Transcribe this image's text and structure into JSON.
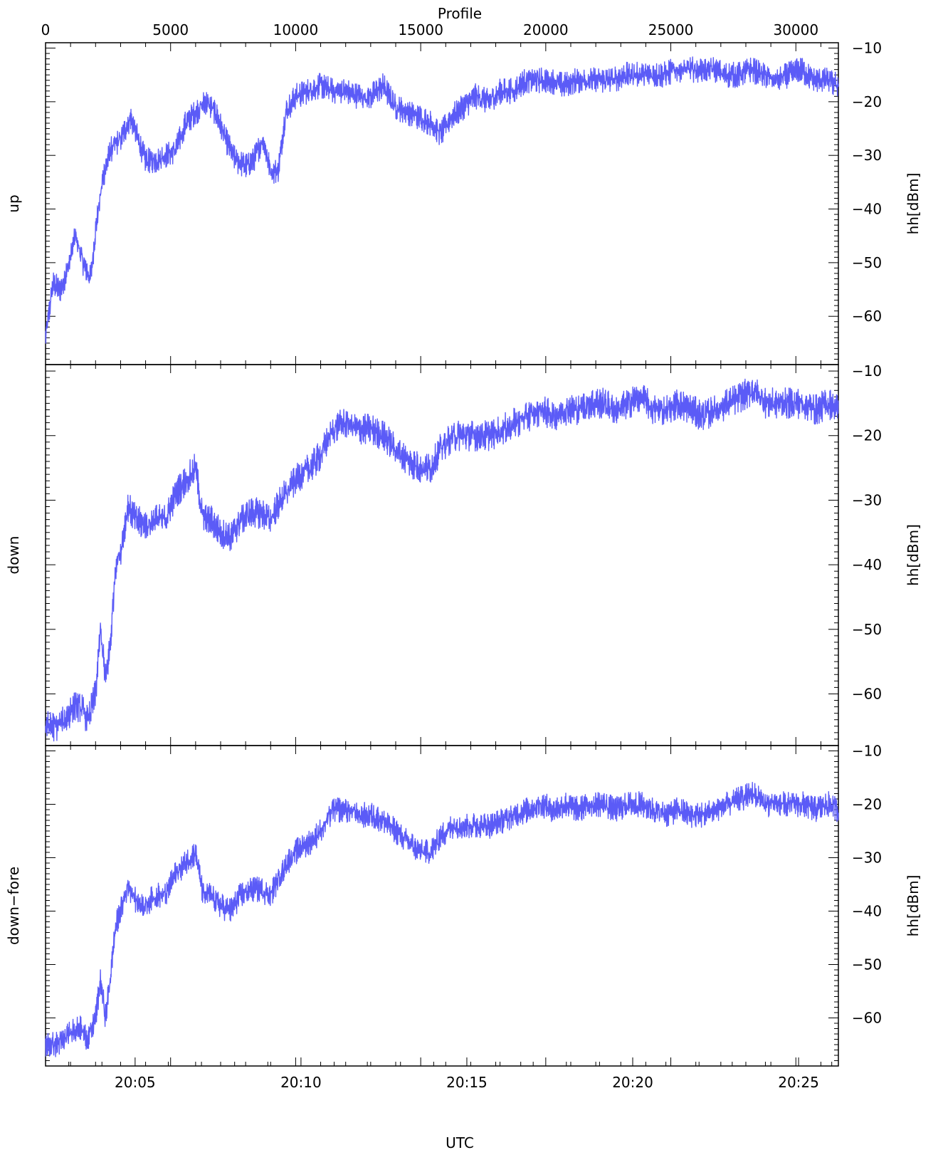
{
  "figure": {
    "top_axis_label": "Profile",
    "bottom_axis_label": "UTC",
    "line_color": "#5b5bf7",
    "axis_color": "#000000"
  },
  "chart_data": [
    {
      "type": "line",
      "panel": "up",
      "left_label": "up",
      "right_label": "hh[dBm]",
      "x_range_profile": [
        0,
        31700
      ],
      "x_range_utc_min": [
        1202.3,
        1226.2
      ],
      "ylim": [
        -69,
        -9
      ],
      "yticks": [
        -10,
        -20,
        -30,
        -40,
        -50,
        -60
      ],
      "top_ticks": [
        0,
        5000,
        10000,
        15000,
        20000,
        25000,
        30000
      ],
      "x": [
        0,
        300,
        600,
        900,
        1200,
        1500,
        1800,
        2000,
        2300,
        2600,
        3000,
        3400,
        3700,
        4000,
        4400,
        4800,
        5200,
        5600,
        6000,
        6400,
        6800,
        7200,
        7600,
        8000,
        8300,
        8700,
        9000,
        9300,
        9600,
        10000,
        10500,
        11000,
        11500,
        12000,
        12500,
        13000,
        13500,
        14000,
        14500,
        15000,
        15400,
        15800,
        16200,
        16700,
        17200,
        17700,
        18200,
        18700,
        19200,
        19700,
        20200,
        20700,
        21200,
        21700,
        22200,
        22700,
        23200,
        23700,
        24200,
        24700,
        25200,
        25700,
        26200,
        26700,
        27200,
        27700,
        28200,
        28700,
        29200,
        29700,
        30200,
        30700,
        31200,
        31700
      ],
      "y": [
        -64,
        -54,
        -55,
        -51,
        -45,
        -50,
        -53,
        -44,
        -34,
        -29,
        -27,
        -23,
        -27,
        -31,
        -31,
        -30,
        -29,
        -24,
        -22,
        -20,
        -22,
        -27,
        -31,
        -32,
        -31,
        -27,
        -33,
        -33,
        -22,
        -19,
        -18,
        -17,
        -18,
        -18,
        -19,
        -19,
        -17,
        -21,
        -22,
        -23,
        -24,
        -26,
        -23,
        -21,
        -19,
        -20,
        -18,
        -18,
        -16,
        -16,
        -16,
        -17,
        -16,
        -16,
        -16,
        -16,
        -15,
        -15,
        -15,
        -15,
        -14,
        -14,
        -14,
        -14,
        -15,
        -15,
        -14,
        -15,
        -16,
        -15,
        -14,
        -16,
        -16,
        -17
      ]
    },
    {
      "type": "line",
      "panel": "down",
      "left_label": "down",
      "right_label": "hh[dBm]",
      "x_range_profile": [
        0,
        31700
      ],
      "ylim": [
        -68,
        -9
      ],
      "yticks": [
        -10,
        -20,
        -30,
        -40,
        -50,
        -60
      ],
      "x": [
        0,
        400,
        800,
        1100,
        1400,
        1700,
        2000,
        2200,
        2400,
        2600,
        2800,
        3000,
        3300,
        3600,
        4000,
        4400,
        4800,
        5200,
        5600,
        6000,
        6300,
        6600,
        7000,
        7400,
        7800,
        8200,
        8600,
        9000,
        9400,
        9800,
        10200,
        10600,
        11000,
        11500,
        12000,
        12500,
        13000,
        13500,
        14000,
        14500,
        15000,
        15400,
        15800,
        16300,
        16800,
        17300,
        17800,
        18300,
        18800,
        19300,
        19800,
        20300,
        20800,
        21300,
        21800,
        22300,
        22800,
        23300,
        23800,
        24300,
        24800,
        25300,
        25800,
        26300,
        26800,
        27300,
        27800,
        28300,
        28800,
        29300,
        29800,
        30300,
        30800,
        31300,
        31700
      ],
      "y": [
        -65,
        -65,
        -64,
        -62,
        -62,
        -64,
        -60,
        -50,
        -58,
        -52,
        -40,
        -38,
        -31,
        -33,
        -34,
        -33,
        -33,
        -29,
        -27,
        -25,
        -33,
        -33,
        -35,
        -36,
        -33,
        -32,
        -32,
        -33,
        -30,
        -28,
        -26,
        -25,
        -23,
        -19,
        -18,
        -19,
        -19,
        -20,
        -22,
        -24,
        -25,
        -25,
        -22,
        -20,
        -20,
        -20,
        -20,
        -19,
        -18,
        -17,
        -16,
        -17,
        -16,
        -16,
        -15,
        -15,
        -16,
        -15,
        -14,
        -16,
        -16,
        -15,
        -16,
        -17,
        -16,
        -15,
        -14,
        -13,
        -15,
        -15,
        -15,
        -15,
        -16,
        -15,
        -16
      ]
    },
    {
      "type": "line",
      "panel": "down-fore",
      "left_label": "down−fore",
      "right_label": "hh[dBm]",
      "x_range_profile": [
        0,
        31700
      ],
      "ylim": [
        -69,
        -9
      ],
      "yticks": [
        -10,
        -20,
        -30,
        -40,
        -50,
        -60
      ],
      "bottom_ticks": [
        "20:05",
        "20:10",
        "20:15",
        "20:20",
        "20:25"
      ],
      "x": [
        0,
        400,
        800,
        1100,
        1400,
        1700,
        2000,
        2200,
        2400,
        2600,
        2800,
        3000,
        3300,
        3600,
        4000,
        4400,
        4800,
        5200,
        5600,
        6000,
        6300,
        6600,
        7000,
        7400,
        7800,
        8200,
        8600,
        9000,
        9400,
        9800,
        10200,
        10600,
        11000,
        11500,
        12000,
        12500,
        13000,
        13500,
        14000,
        14500,
        15000,
        15400,
        15800,
        16300,
        16800,
        17300,
        17800,
        18300,
        18800,
        19300,
        19800,
        20300,
        20800,
        21300,
        21800,
        22300,
        22800,
        23300,
        23800,
        24300,
        24800,
        25300,
        25800,
        26300,
        26800,
        27300,
        27800,
        28300,
        28800,
        29300,
        29800,
        30300,
        30800,
        31300,
        31700
      ],
      "y": [
        -65,
        -65,
        -64,
        -62,
        -62,
        -64,
        -60,
        -53,
        -60,
        -52,
        -43,
        -40,
        -35,
        -38,
        -39,
        -37,
        -37,
        -33,
        -31,
        -29,
        -37,
        -37,
        -39,
        -40,
        -37,
        -36,
        -36,
        -37,
        -33,
        -30,
        -28,
        -27,
        -25,
        -21,
        -21,
        -22,
        -22,
        -23,
        -25,
        -27,
        -29,
        -29,
        -26,
        -24,
        -24,
        -24,
        -24,
        -23,
        -22,
        -21,
        -20,
        -21,
        -20,
        -21,
        -20,
        -20,
        -21,
        -20,
        -20,
        -21,
        -22,
        -21,
        -22,
        -22,
        -21,
        -20,
        -19,
        -18,
        -20,
        -20,
        -20,
        -20,
        -21,
        -20,
        -21
      ]
    }
  ]
}
